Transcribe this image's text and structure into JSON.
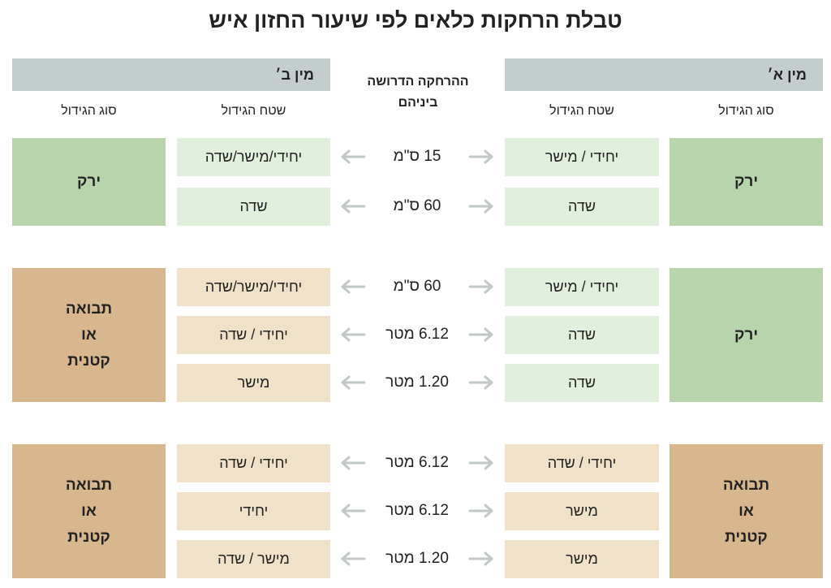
{
  "title": "טבלת הרחקות כלאים לפי שיעור החזון איש",
  "colors": {
    "header_bg": "#c4cdce",
    "green_dark": "#b8d4ad",
    "green_light": "#e1f0dc",
    "tan_dark": "#d9b78e",
    "tan_light": "#efe2c9",
    "arrow": "#c2c7c7"
  },
  "header": {
    "kind_a": "מין א׳",
    "kind_b": "מין ב׳",
    "distance_line1": "ההרחקה הדרושה",
    "distance_line2": "ביניהם",
    "a_type_col": "סוג הגידול",
    "a_area_col": "שטח הגידול",
    "b_area_col": "שטח הגידול",
    "b_type_col": "סוג הגידול"
  },
  "groups": [
    {
      "a_type": [
        "ירק"
      ],
      "b_type": [
        "ירק"
      ],
      "rows": [
        {
          "a_area": "יחידי / מישר",
          "distance": "15 ס\"מ",
          "b_area": "יחידי/מישר/שדה"
        },
        {
          "a_area": "שדה",
          "distance": "60 ס\"מ",
          "b_area": "שדה"
        }
      ]
    },
    {
      "a_type": [
        "ירק"
      ],
      "b_type": [
        "תבואה",
        "או",
        "קטנית"
      ],
      "rows": [
        {
          "a_area": "יחידי / מישר",
          "distance": "60 ס\"מ",
          "b_area": "יחידי/מישר/שדה"
        },
        {
          "a_area": "שדה",
          "distance": "6.12 מטר",
          "b_area": "יחידי / שדה"
        },
        {
          "a_area": "שדה",
          "distance": "1.20 מטר",
          "b_area": "מישר"
        }
      ]
    },
    {
      "a_type": [
        "תבואה",
        "או",
        "קטנית"
      ],
      "b_type": [
        "תבואה",
        "או",
        "קטנית"
      ],
      "rows": [
        {
          "a_area": "יחידי / שדה",
          "distance": "6.12 מטר",
          "b_area": "יחידי / שדה"
        },
        {
          "a_area": "מישר",
          "distance": "6.12 מטר",
          "b_area": "יחידי"
        },
        {
          "a_area": "מישר",
          "distance": "1.20 מטר",
          "b_area": "מישר / שדה"
        }
      ]
    }
  ]
}
